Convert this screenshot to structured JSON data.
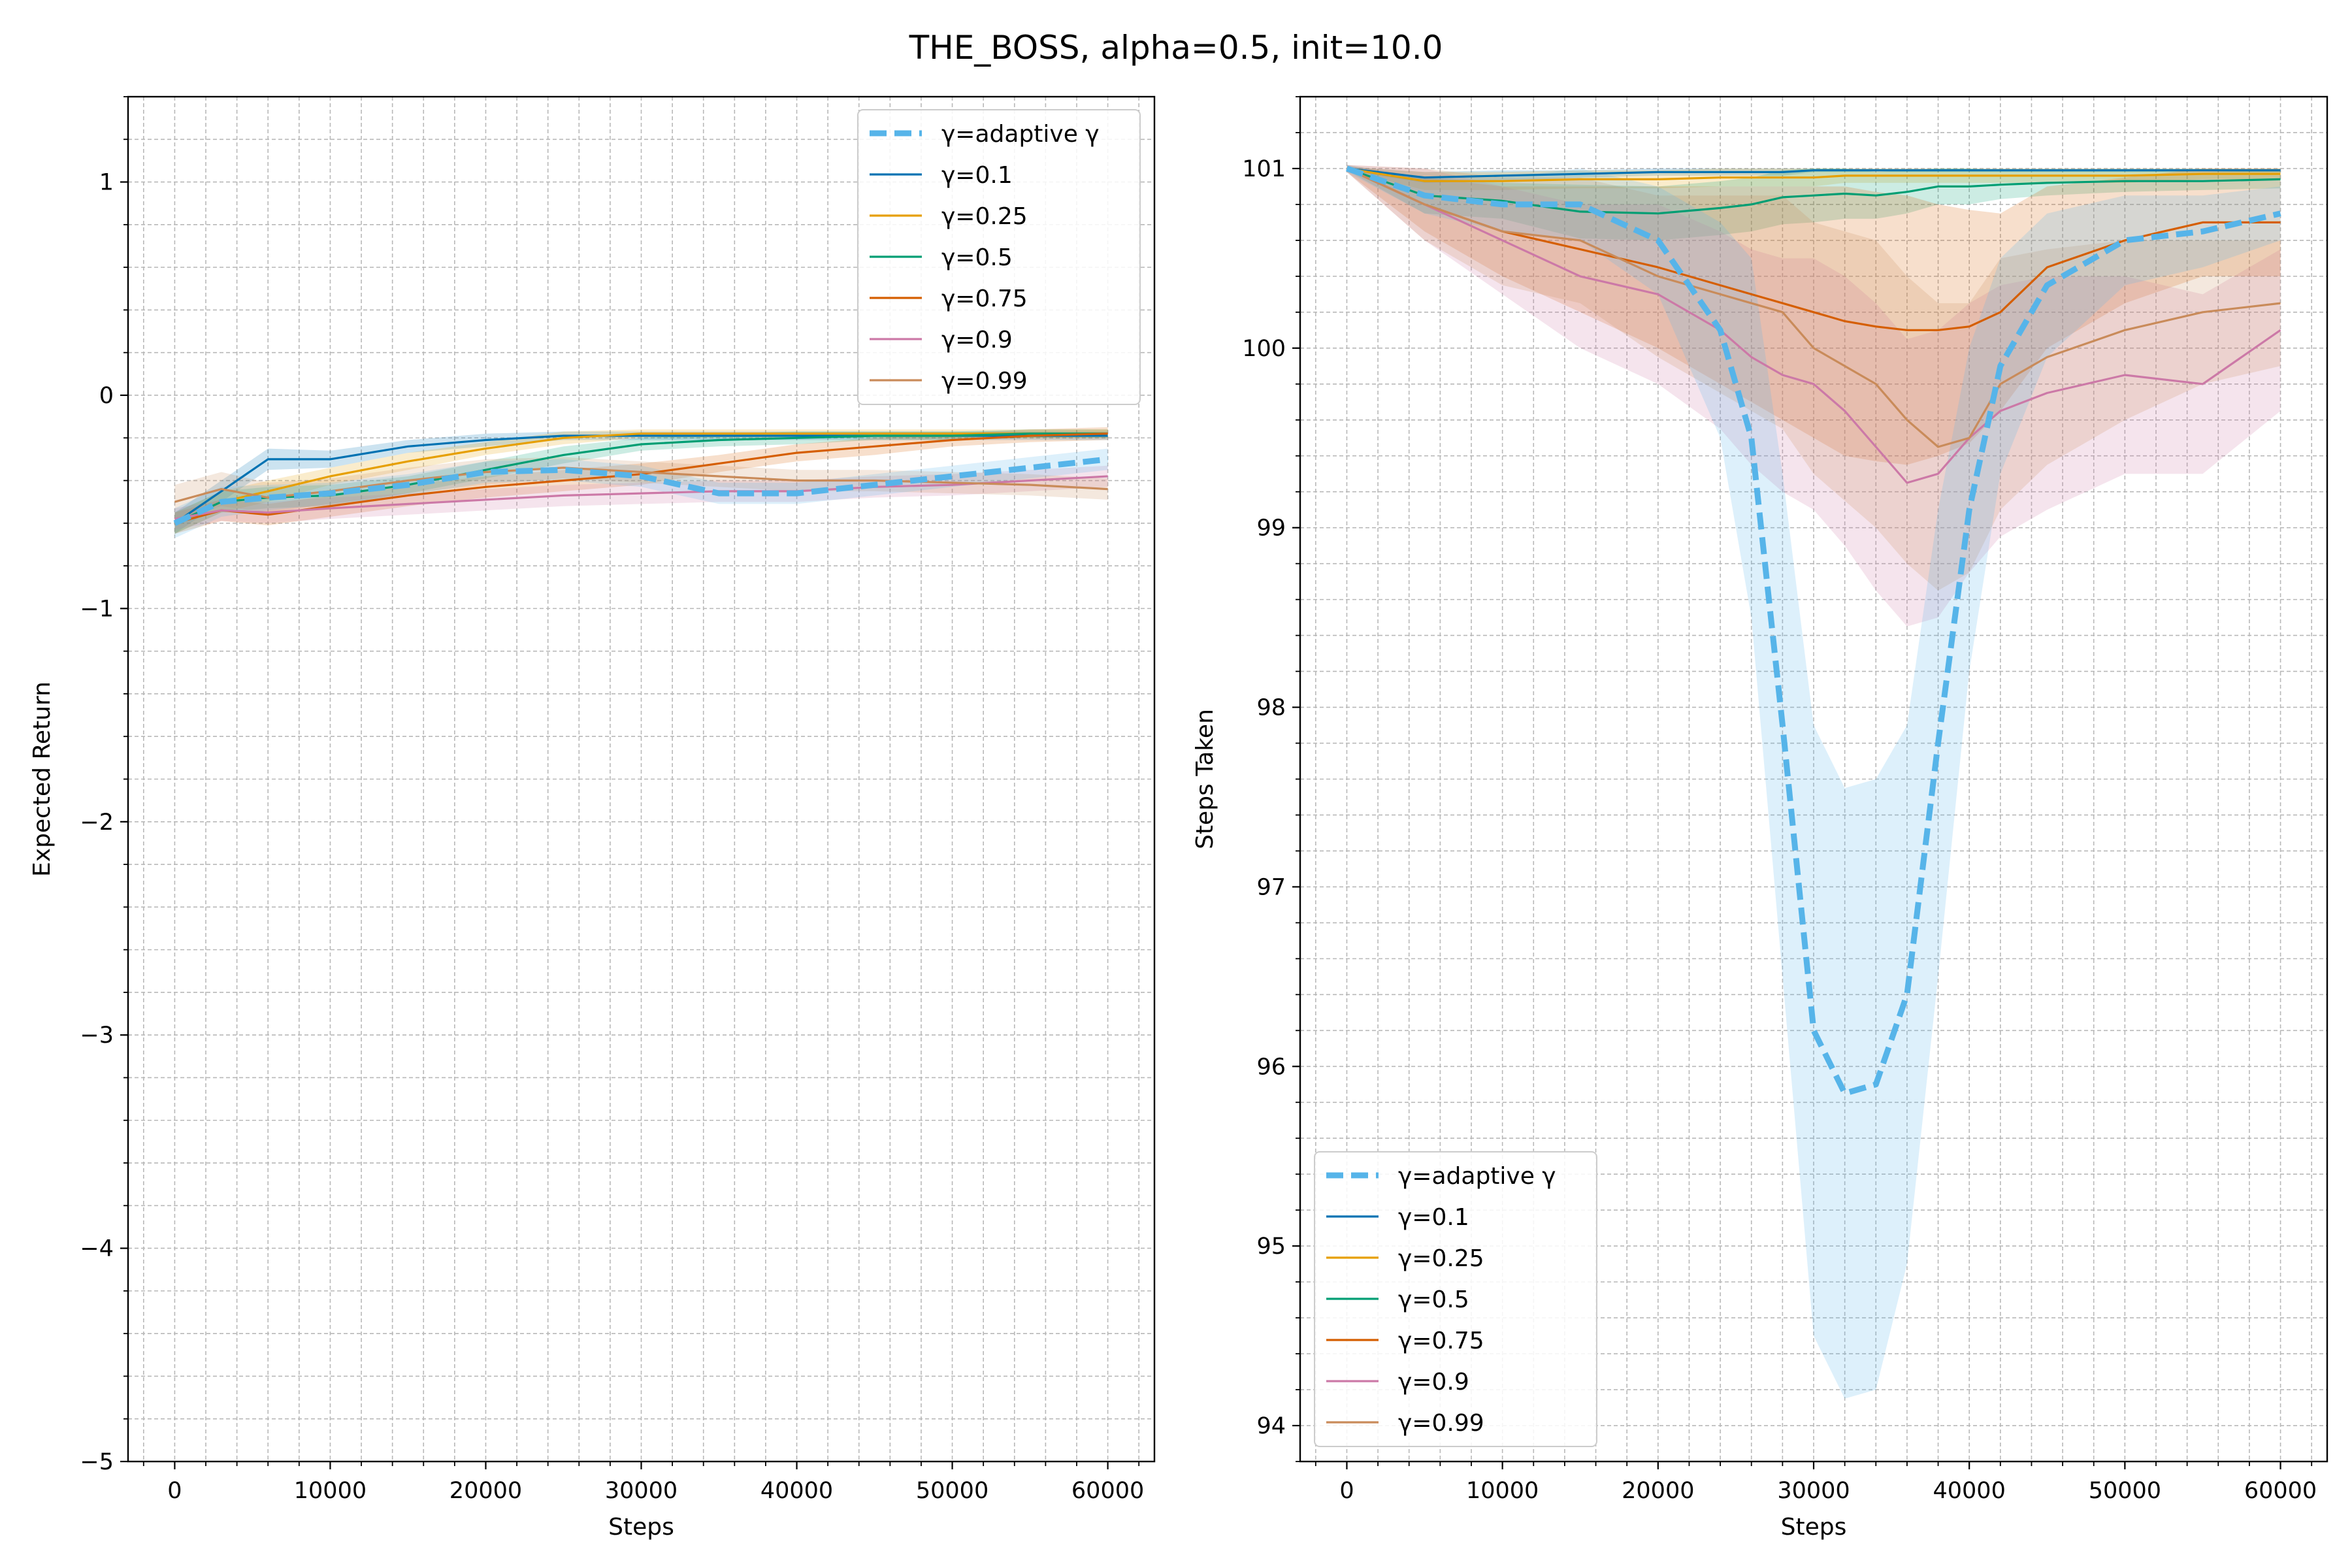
{
  "title": "THE_BOSS, alpha=0.5, init=10.0",
  "colors": {
    "adaptive": "#56B4E9",
    "g0_1": "#0072B2",
    "g0_25": "#E69F00",
    "g0_5": "#009E73",
    "g0_75": "#D55E00",
    "g0_9": "#CC79A7",
    "g0_99": "#C98B5A"
  },
  "chart_data": [
    {
      "type": "line",
      "xlabel": "Steps",
      "ylabel": "Expected Return",
      "xlim": [
        -3000,
        63000
      ],
      "ylim": [
        -5,
        1.4
      ],
      "xticks": [
        0,
        10000,
        20000,
        30000,
        40000,
        50000,
        60000
      ],
      "xtick_labels": [
        "0",
        "10000",
        "20000",
        "30000",
        "40000",
        "50000",
        "60000"
      ],
      "yticks": [
        -5,
        -4,
        -3,
        -2,
        -1,
        0,
        1
      ],
      "ytick_labels": [
        "−5",
        "−4",
        "−3",
        "−2",
        "−1",
        "0",
        "1"
      ],
      "grid": true,
      "legend": "upper right",
      "x": [
        0,
        3000,
        6000,
        10000,
        15000,
        20000,
        25000,
        30000,
        35000,
        40000,
        45000,
        50000,
        55000,
        60000
      ],
      "series": [
        {
          "name": "γ=adaptive γ",
          "color_key": "adaptive",
          "dashed": true,
          "values": [
            -0.6,
            -0.5,
            -0.48,
            -0.46,
            -0.42,
            -0.36,
            -0.35,
            -0.38,
            -0.46,
            -0.46,
            -0.42,
            -0.38,
            -0.34,
            -0.3
          ],
          "band": [
            0.07,
            0.07,
            0.06,
            0.05,
            0.05,
            0.05,
            0.05,
            0.05,
            0.05,
            0.05,
            0.05,
            0.05,
            0.05,
            0.05
          ]
        },
        {
          "name": "γ=0.1",
          "color_key": "g0_1",
          "values": [
            -0.6,
            -0.45,
            -0.3,
            -0.3,
            -0.24,
            -0.21,
            -0.19,
            -0.19,
            -0.19,
            -0.19,
            -0.19,
            -0.19,
            -0.19,
            -0.19
          ],
          "band": [
            0.05,
            0.05,
            0.05,
            0.04,
            0.03,
            0.03,
            0.02,
            0.02,
            0.02,
            0.02,
            0.02,
            0.02,
            0.02,
            0.02
          ]
        },
        {
          "name": "γ=0.25",
          "color_key": "g0_25",
          "values": [
            -0.6,
            -0.5,
            -0.45,
            -0.38,
            -0.31,
            -0.25,
            -0.2,
            -0.18,
            -0.18,
            -0.18,
            -0.18,
            -0.18,
            -0.18,
            -0.18
          ],
          "band": [
            0.05,
            0.05,
            0.05,
            0.04,
            0.04,
            0.03,
            0.03,
            0.02,
            0.02,
            0.02,
            0.02,
            0.02,
            0.02,
            0.02
          ]
        },
        {
          "name": "γ=0.5",
          "color_key": "g0_5",
          "values": [
            -0.6,
            -0.5,
            -0.48,
            -0.47,
            -0.42,
            -0.35,
            -0.28,
            -0.23,
            -0.21,
            -0.2,
            -0.19,
            -0.19,
            -0.18,
            -0.18
          ],
          "band": [
            0.05,
            0.05,
            0.05,
            0.05,
            0.04,
            0.04,
            0.04,
            0.03,
            0.03,
            0.03,
            0.02,
            0.02,
            0.02,
            0.02
          ]
        },
        {
          "name": "γ=0.75",
          "color_key": "g0_75",
          "values": [
            -0.6,
            -0.54,
            -0.56,
            -0.52,
            -0.47,
            -0.43,
            -0.4,
            -0.37,
            -0.32,
            -0.27,
            -0.24,
            -0.21,
            -0.19,
            -0.18
          ],
          "band": [
            0.05,
            0.05,
            0.05,
            0.05,
            0.05,
            0.05,
            0.05,
            0.05,
            0.04,
            0.04,
            0.04,
            0.03,
            0.03,
            0.03
          ]
        },
        {
          "name": "γ=0.9",
          "color_key": "g0_9",
          "values": [
            -0.58,
            -0.54,
            -0.55,
            -0.53,
            -0.51,
            -0.49,
            -0.47,
            -0.46,
            -0.45,
            -0.45,
            -0.43,
            -0.42,
            -0.4,
            -0.38
          ],
          "band": [
            0.05,
            0.05,
            0.05,
            0.05,
            0.05,
            0.05,
            0.05,
            0.05,
            0.05,
            0.05,
            0.05,
            0.05,
            0.05,
            0.05
          ]
        },
        {
          "name": "γ=0.99",
          "color_key": "g0_99",
          "values": [
            -0.5,
            -0.44,
            -0.48,
            -0.45,
            -0.4,
            -0.36,
            -0.34,
            -0.36,
            -0.38,
            -0.4,
            -0.4,
            -0.41,
            -0.42,
            -0.44
          ],
          "band": [
            0.08,
            0.08,
            0.07,
            0.06,
            0.06,
            0.06,
            0.05,
            0.05,
            0.05,
            0.05,
            0.05,
            0.05,
            0.05,
            0.05
          ]
        }
      ]
    },
    {
      "type": "line",
      "xlabel": "Steps",
      "ylabel": "Steps Taken",
      "xlim": [
        -3000,
        63000
      ],
      "ylim": [
        93.8,
        101.4
      ],
      "xticks": [
        0,
        10000,
        20000,
        30000,
        40000,
        50000,
        60000
      ],
      "xtick_labels": [
        "0",
        "10000",
        "20000",
        "30000",
        "40000",
        "50000",
        "60000"
      ],
      "yticks": [
        94,
        95,
        96,
        97,
        98,
        99,
        100,
        101
      ],
      "ytick_labels": [
        "94",
        "95",
        "96",
        "97",
        "98",
        "99",
        "100",
        "101"
      ],
      "grid": true,
      "legend": "lower left",
      "x": [
        0,
        5000,
        10000,
        15000,
        20000,
        24000,
        26000,
        28000,
        30000,
        32000,
        34000,
        36000,
        38000,
        40000,
        42000,
        45000,
        50000,
        55000,
        60000
      ],
      "series": [
        {
          "name": "γ=adaptive γ",
          "color_key": "adaptive",
          "dashed": true,
          "values": [
            101,
            100.85,
            100.8,
            100.8,
            100.6,
            100.1,
            99.5,
            97.9,
            96.2,
            95.85,
            95.9,
            96.4,
            97.8,
            99.1,
            99.9,
            100.35,
            100.6,
            100.65,
            100.75
          ],
          "band": [
            0.02,
            0.1,
            0.15,
            0.2,
            0.3,
            0.6,
            1.0,
            1.4,
            1.7,
            1.7,
            1.7,
            1.5,
            1.3,
            0.9,
            0.6,
            0.4,
            0.25,
            0.2,
            0.15
          ]
        },
        {
          "name": "γ=0.1",
          "color_key": "g0_1",
          "values": [
            101,
            100.95,
            100.96,
            100.97,
            100.98,
            100.98,
            100.98,
            100.98,
            100.99,
            100.99,
            100.99,
            100.99,
            100.99,
            100.99,
            100.99,
            100.99,
            100.99,
            100.99,
            100.99
          ],
          "band": [
            0.01,
            0.03,
            0.03,
            0.02,
            0.02,
            0.02,
            0.02,
            0.02,
            0.01,
            0.01,
            0.01,
            0.01,
            0.01,
            0.01,
            0.01,
            0.01,
            0.01,
            0.01,
            0.01
          ]
        },
        {
          "name": "γ=0.25",
          "color_key": "g0_25",
          "values": [
            101,
            100.93,
            100.93,
            100.94,
            100.94,
            100.95,
            100.95,
            100.95,
            100.95,
            100.96,
            100.96,
            100.96,
            100.96,
            100.96,
            100.96,
            100.96,
            100.96,
            100.97,
            100.97
          ],
          "band": [
            0.01,
            0.05,
            0.05,
            0.05,
            0.05,
            0.05,
            0.05,
            0.05,
            0.05,
            0.04,
            0.04,
            0.04,
            0.04,
            0.04,
            0.04,
            0.04,
            0.04,
            0.03,
            0.03
          ]
        },
        {
          "name": "γ=0.5",
          "color_key": "g0_5",
          "values": [
            101,
            100.85,
            100.82,
            100.76,
            100.75,
            100.78,
            100.8,
            100.84,
            100.85,
            100.86,
            100.85,
            100.87,
            100.9,
            100.9,
            100.91,
            100.92,
            100.93,
            100.93,
            100.94
          ],
          "band": [
            0.01,
            0.1,
            0.1,
            0.15,
            0.15,
            0.15,
            0.15,
            0.15,
            0.15,
            0.14,
            0.13,
            0.12,
            0.1,
            0.1,
            0.08,
            0.07,
            0.06,
            0.05,
            0.05
          ]
        },
        {
          "name": "γ=0.75",
          "color_key": "g0_75",
          "values": [
            101,
            100.8,
            100.65,
            100.55,
            100.45,
            100.35,
            100.3,
            100.25,
            100.2,
            100.15,
            100.12,
            100.1,
            100.1,
            100.12,
            100.2,
            100.45,
            100.6,
            100.7,
            100.7
          ],
          "band": [
            0.02,
            0.15,
            0.25,
            0.35,
            0.45,
            0.55,
            0.6,
            0.65,
            0.7,
            0.75,
            0.75,
            0.75,
            0.7,
            0.65,
            0.55,
            0.45,
            0.35,
            0.3,
            0.3
          ]
        },
        {
          "name": "γ=0.9",
          "color_key": "g0_9",
          "values": [
            101,
            100.8,
            100.6,
            100.4,
            100.3,
            100.1,
            99.95,
            99.85,
            99.8,
            99.65,
            99.45,
            99.25,
            99.3,
            99.5,
            99.65,
            99.75,
            99.85,
            99.8,
            100.1
          ],
          "band": [
            0.02,
            0.2,
            0.3,
            0.4,
            0.5,
            0.55,
            0.6,
            0.65,
            0.7,
            0.75,
            0.8,
            0.8,
            0.8,
            0.75,
            0.7,
            0.65,
            0.55,
            0.5,
            0.45
          ]
        },
        {
          "name": "γ=0.99",
          "color_key": "g0_99",
          "values": [
            101,
            100.8,
            100.65,
            100.6,
            100.4,
            100.3,
            100.25,
            100.2,
            100.0,
            99.9,
            99.8,
            99.6,
            99.45,
            99.5,
            99.8,
            99.95,
            100.1,
            100.2,
            100.25
          ],
          "band": [
            0.02,
            0.2,
            0.3,
            0.35,
            0.45,
            0.55,
            0.6,
            0.65,
            0.7,
            0.75,
            0.8,
            0.8,
            0.8,
            0.75,
            0.7,
            0.6,
            0.5,
            0.4,
            0.35
          ]
        }
      ]
    }
  ]
}
